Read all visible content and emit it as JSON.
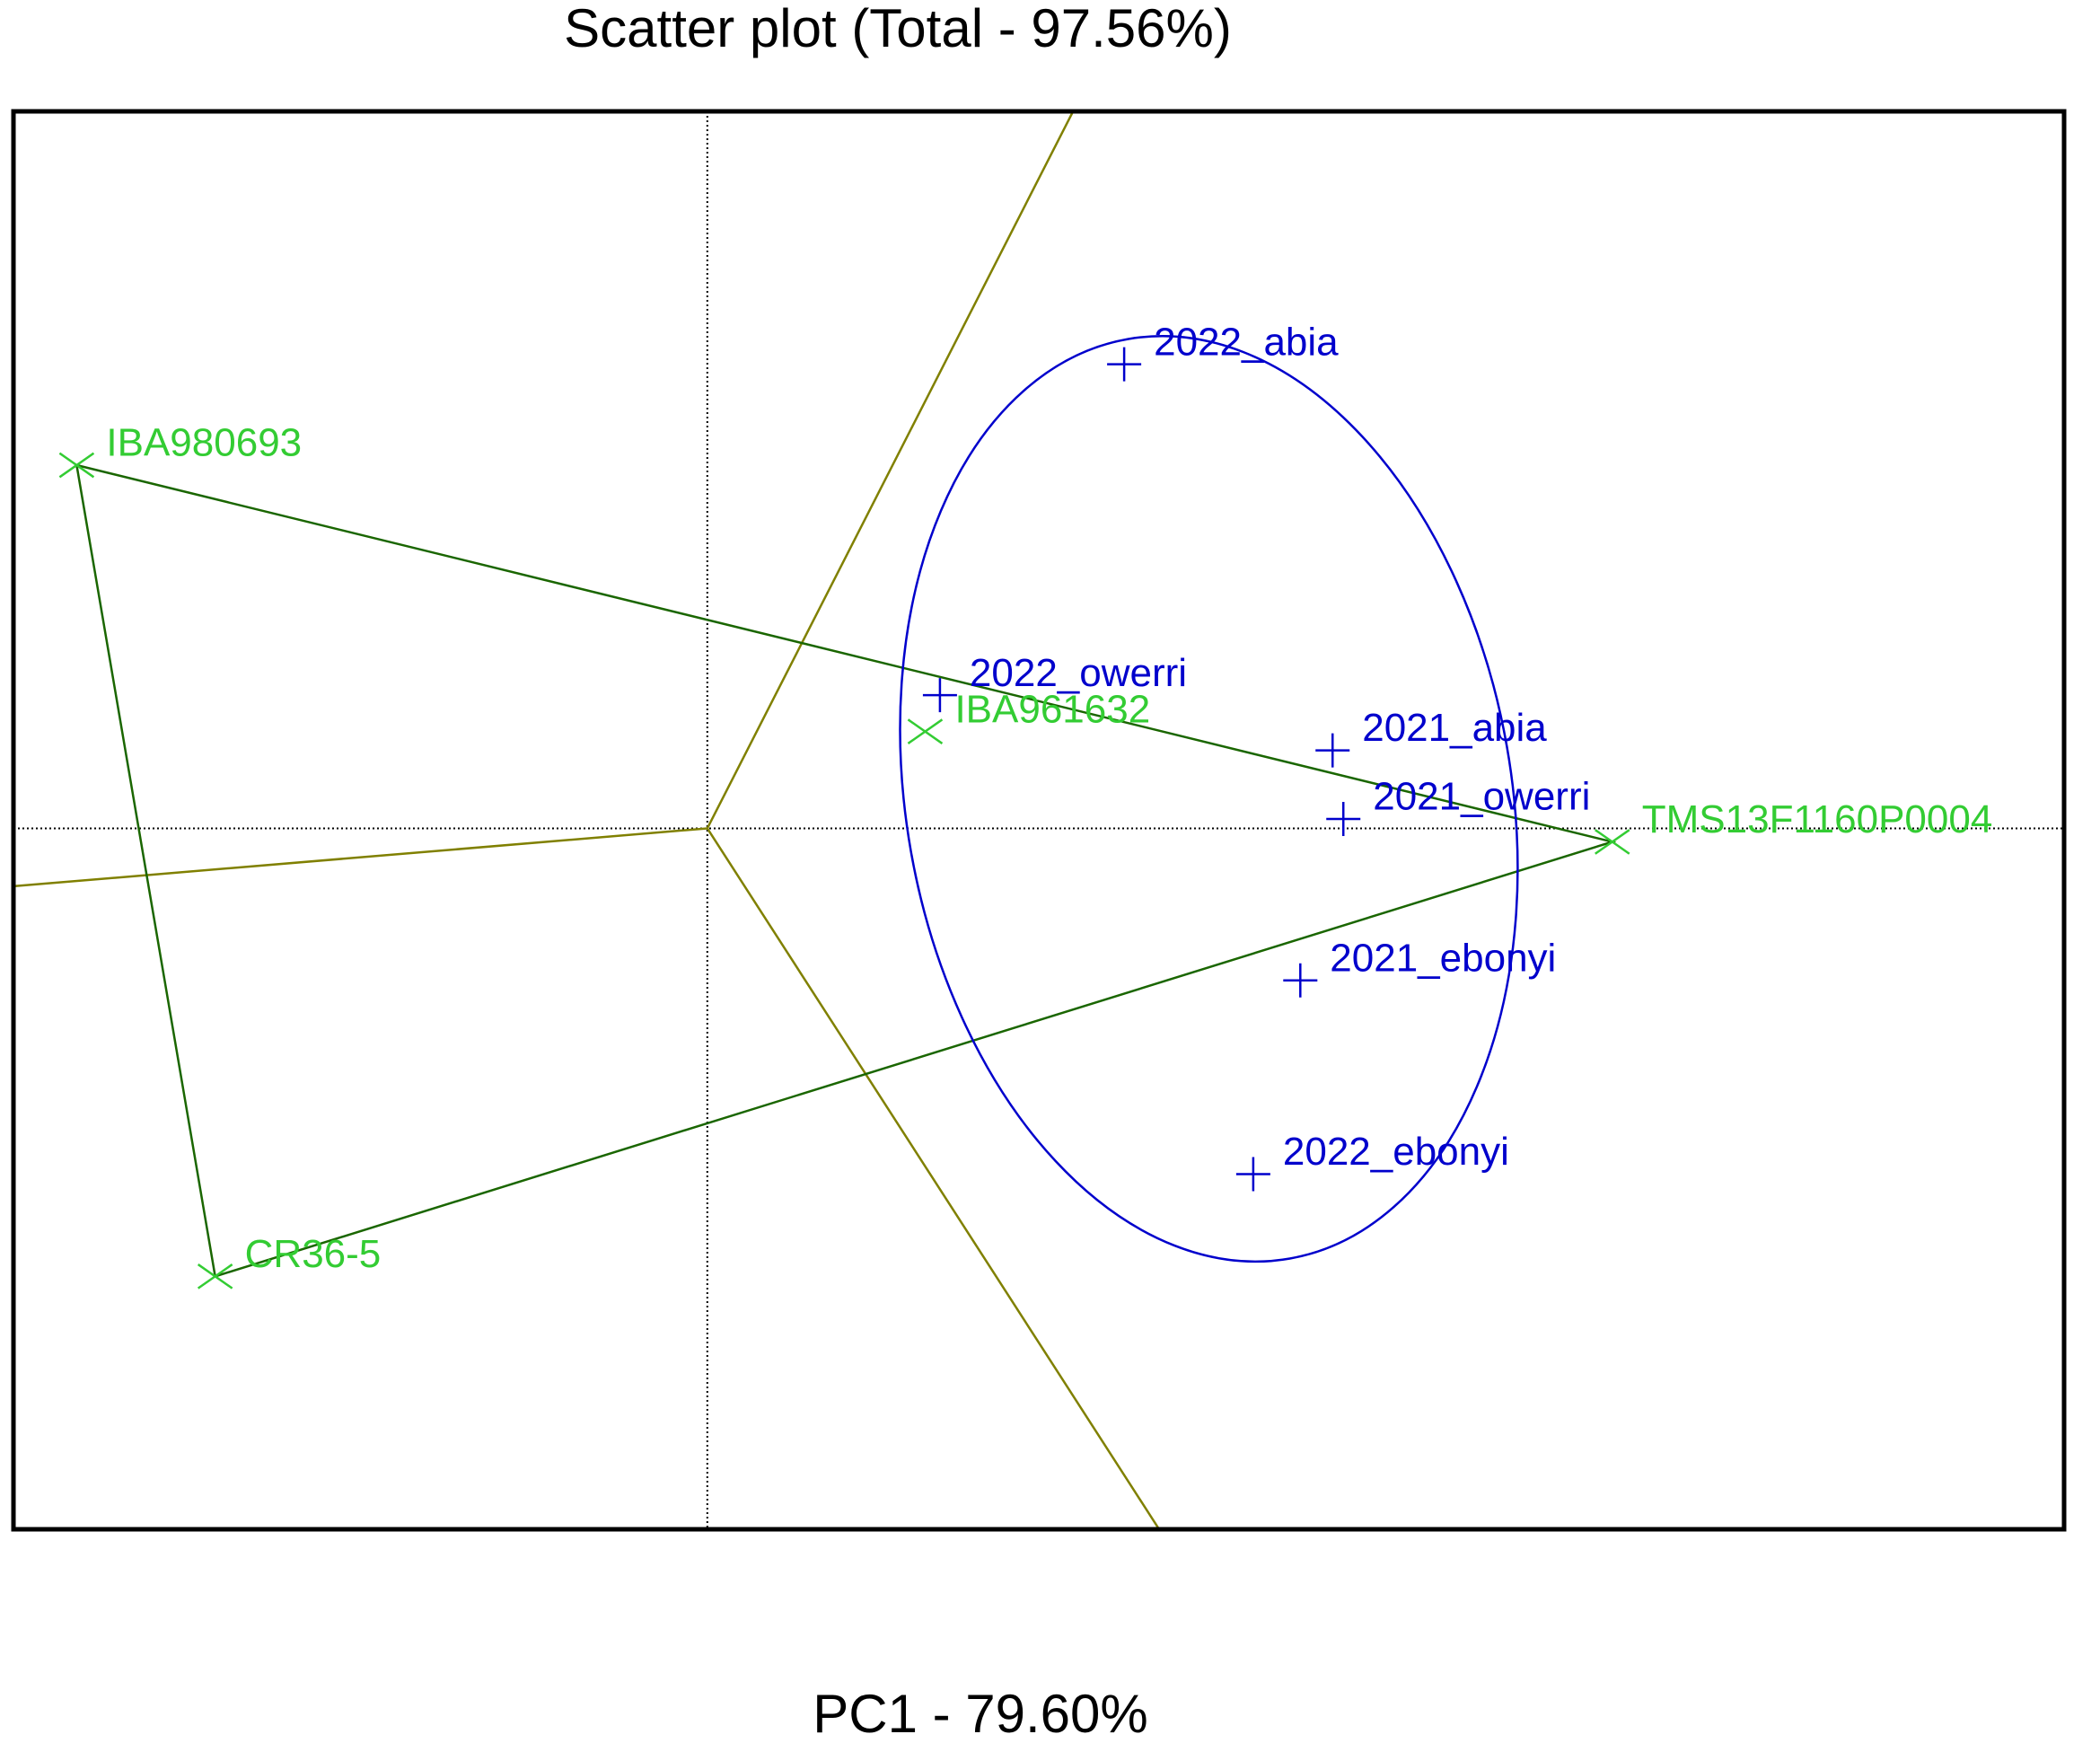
{
  "chart_data": {
    "type": "biplot",
    "title": "Scatter plot (Total - 97.56%)",
    "xlabel": "PC1 - 79.60%",
    "xlim": [
      -5.16,
      10.09
    ],
    "ylim": [
      -5.21,
      5.33
    ],
    "series": [
      {
        "color": "#33cc33",
        "marker": "x",
        "labels": [
          "IBA980693",
          "IBA961632",
          "TMS13F1160P0004",
          "CR36-5"
        ],
        "x": [
          -4.69,
          1.62,
          6.73,
          -3.66
        ],
        "y": [
          2.7,
          0.72,
          -0.1,
          -3.33
        ]
      },
      {
        "color": "#0000cc",
        "marker": "plus",
        "labels": [
          "2022_abia",
          "2022_owerri",
          "2021_abia",
          "2021_owerri",
          "2021_ebonyi",
          "2022_ebonyi"
        ],
        "x": [
          3.1,
          1.73,
          4.65,
          4.73,
          4.41,
          4.06
        ],
        "y": [
          3.45,
          0.99,
          0.58,
          0.07,
          -1.13,
          -2.57
        ]
      }
    ],
    "polygon": {
      "series": 0,
      "vertices": [
        0,
        2,
        3
      ],
      "color": "#1a6600"
    },
    "rays": {
      "color": "#808000",
      "ends": [
        [
          2.72,
          5.33
        ],
        [
          -5.16,
          -0.43
        ],
        [
          3.36,
          -5.21
        ]
      ]
    },
    "ellipse": {
      "color": "#0000cc",
      "cx": 3.73,
      "cy": 0.22,
      "rx": 2.25,
      "ry": 3.47,
      "angle": 10
    }
  }
}
